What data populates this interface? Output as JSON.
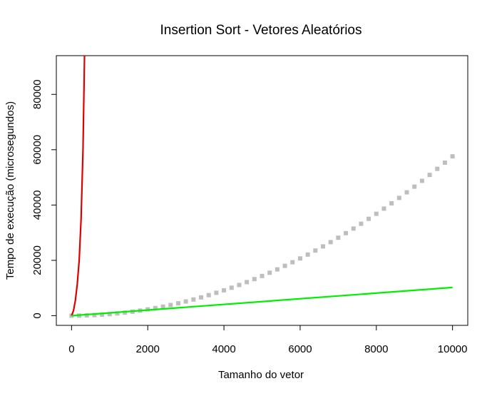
{
  "chart_data": {
    "type": "scatter",
    "title": "Insertion Sort - Vetores Aleatórios",
    "xlabel": "Tamanho do vetor",
    "ylabel": "Tempo de execução (microsegundos)",
    "xlim": [
      -400,
      10400
    ],
    "ylim": [
      -3500,
      94000
    ],
    "x_ticks": [
      0,
      2000,
      4000,
      6000,
      8000,
      10000
    ],
    "y_ticks": [
      0,
      20000,
      40000,
      60000,
      80000
    ],
    "grid": false,
    "legend": "none",
    "series": [
      {
        "kind": "points",
        "color": "#bebebe",
        "x": [
          0,
          200,
          400,
          600,
          800,
          1000,
          1200,
          1400,
          1600,
          1800,
          2000,
          2200,
          2400,
          2600,
          2800,
          3000,
          3200,
          3400,
          3600,
          3800,
          4000,
          4200,
          4400,
          4600,
          4800,
          5000,
          5200,
          5400,
          5600,
          5800,
          6000,
          6200,
          6400,
          6600,
          6800,
          7000,
          7200,
          7400,
          7600,
          7800,
          8000,
          8200,
          8400,
          8600,
          8800,
          9000,
          9200,
          9400,
          9600,
          9800,
          10000
        ],
        "y": [
          0,
          20,
          90,
          200,
          360,
          570,
          820,
          1110,
          1450,
          1840,
          2270,
          2750,
          3280,
          3850,
          4470,
          5140,
          5850,
          6610,
          7420,
          8270,
          9170,
          10110,
          11100,
          12140,
          13220,
          14350,
          15520,
          16740,
          18010,
          19320,
          20690,
          22090,
          23540,
          25040,
          26590,
          28180,
          29830,
          31500,
          33230,
          35010,
          36830,
          38700,
          40620,
          42580,
          44590,
          46640,
          48740,
          50890,
          53080,
          55320,
          57600
        ]
      },
      {
        "kind": "line",
        "color": "#dd0000",
        "x": [
          0,
          50,
          100,
          150,
          200,
          250,
          300,
          340
        ],
        "y": [
          0,
          1800,
          5500,
          11500,
          20000,
          35000,
          60000,
          94000
        ]
      },
      {
        "kind": "line",
        "color": "#00ee00",
        "x": [
          0,
          10000
        ],
        "y": [
          0,
          10200
        ]
      }
    ]
  }
}
